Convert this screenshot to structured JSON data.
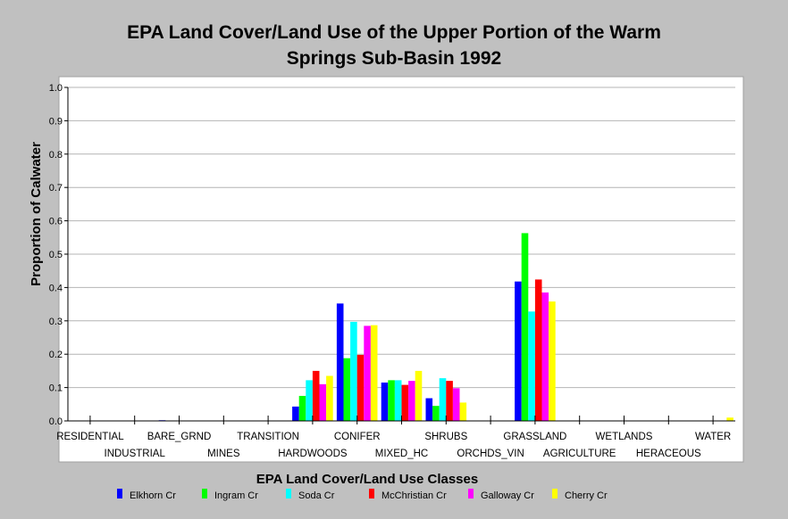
{
  "chart_data": {
    "type": "bar",
    "title_lines": [
      "EPA Land Cover/Land Use of the Upper Portion of the Warm",
      "Springs Sub-Basin 1992"
    ],
    "xlabel": "EPA Land Cover/Land Use Classes",
    "ylabel": "Proportion of Calwater",
    "ylim": [
      0,
      1.0
    ],
    "yticks": [
      "0.0",
      "0.1",
      "0.2",
      "0.3",
      "0.4",
      "0.5",
      "0.6",
      "0.7",
      "0.8",
      "0.9",
      "1.0"
    ],
    "categories": [
      "RESIDENTIAL",
      "INDUSTRIAL",
      "BARE_GRND",
      "MINES",
      "TRANSITION",
      "HARDWOODS",
      "CONIFER",
      "MIXED_HC",
      "SHRUBS",
      "ORCHDS_VIN",
      "GRASSLAND",
      "AGRICULTURE",
      "WETLANDS",
      "HERACEOUS",
      "WATER"
    ],
    "grid": true,
    "legend_position": "bottom",
    "series": [
      {
        "name": "Elkhorn Cr",
        "color": "#0000ff",
        "values": [
          0,
          0,
          0.002,
          0,
          0,
          0.043,
          0.352,
          0.115,
          0.068,
          0,
          0.418,
          0,
          0,
          0,
          0
        ]
      },
      {
        "name": "Ingram Cr",
        "color": "#00ff00",
        "values": [
          0,
          0,
          0,
          0,
          0,
          0.075,
          0.188,
          0.122,
          0.045,
          0,
          0.563,
          0,
          0,
          0,
          0
        ]
      },
      {
        "name": "Soda Cr",
        "color": "#00ffff",
        "values": [
          0,
          0,
          0,
          0,
          0,
          0.122,
          0.297,
          0.122,
          0.128,
          0,
          0.328,
          0,
          0,
          0,
          0
        ]
      },
      {
        "name": "McChristian Cr",
        "color": "#ff0000",
        "values": [
          0,
          0,
          0,
          0,
          0,
          0.15,
          0.198,
          0.108,
          0.12,
          0,
          0.424,
          0,
          0,
          0,
          0
        ]
      },
      {
        "name": "Galloway Cr",
        "color": "#ff00ff",
        "values": [
          0,
          0,
          0,
          0,
          0,
          0.11,
          0.285,
          0.12,
          0.098,
          0,
          0.385,
          0,
          0,
          0,
          0
        ]
      },
      {
        "name": "Cherry Cr",
        "color": "#ffff00",
        "values": [
          0,
          0,
          0,
          0,
          0,
          0.135,
          0.287,
          0.15,
          0.055,
          0,
          0.358,
          0,
          0,
          0,
          0.01
        ]
      }
    ]
  }
}
